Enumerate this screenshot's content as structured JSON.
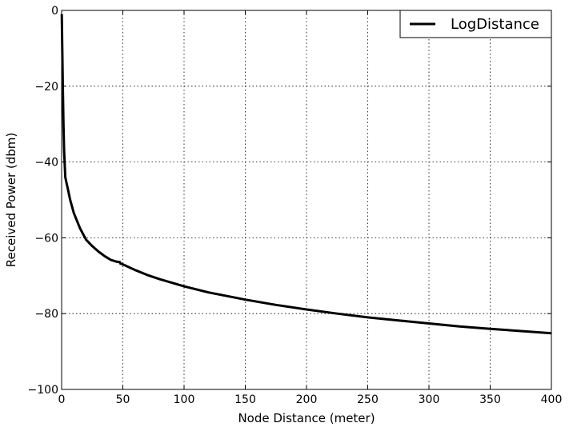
{
  "chart_data": {
    "type": "line",
    "xlabel": "Node Distance (meter)",
    "ylabel": "Received Power (dbm)",
    "xlim": [
      0,
      400
    ],
    "ylim": [
      -100,
      0
    ],
    "xticks": [
      0,
      50,
      100,
      150,
      200,
      250,
      300,
      350,
      400
    ],
    "yticks": [
      0,
      -20,
      -40,
      -60,
      -80,
      -100
    ],
    "xtick_labels": [
      "0",
      "50",
      "100",
      "150",
      "200",
      "250",
      "300",
      "350",
      "400"
    ],
    "ytick_labels": [
      "0",
      "−20",
      "−40",
      "−60",
      "−80",
      "−100"
    ],
    "grid": true,
    "legend_position": "top-right",
    "series": [
      {
        "name": "LogDistance",
        "color": "#000000",
        "x": [
          0.1,
          0.5,
          1,
          1.5,
          2,
          3,
          4,
          5,
          7,
          10,
          15,
          20,
          25,
          30,
          35,
          40,
          45,
          47.5,
          48,
          50,
          60,
          70,
          80,
          100,
          120,
          150,
          175,
          200,
          225,
          250,
          275,
          300,
          325,
          350,
          375,
          400
        ],
        "y": [
          -1,
          -10,
          -20,
          -30,
          -37,
          -44,
          -45.5,
          -47,
          -50,
          -53.5,
          -57.5,
          -60.5,
          -62.2,
          -63.6,
          -64.8,
          -65.8,
          -66.3,
          -66.4,
          -66.8,
          -67,
          -68.5,
          -69.8,
          -70.9,
          -72.8,
          -74.4,
          -76.3,
          -77.7,
          -78.9,
          -80,
          -81,
          -81.8,
          -82.6,
          -83.4,
          -84,
          -84.6,
          -85.2
        ]
      }
    ]
  }
}
